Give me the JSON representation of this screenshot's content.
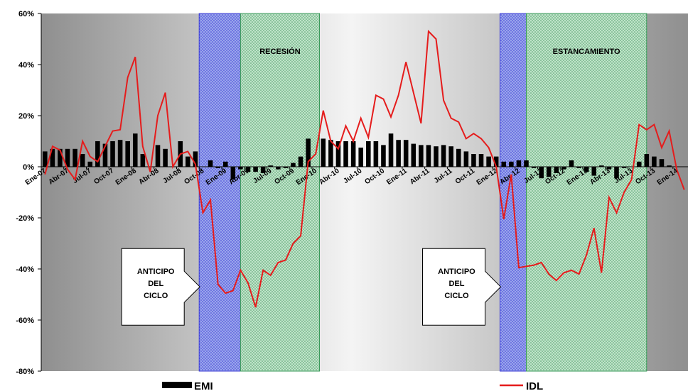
{
  "chart_data": {
    "type": "bar+line",
    "ylim": [
      -80,
      60
    ],
    "yticks": [
      -80,
      -60,
      -40,
      -20,
      0,
      20,
      40,
      60
    ],
    "ytick_labels": [
      "-80%",
      "-60%",
      "-40%",
      "-20%",
      "0%",
      "20%",
      "40%",
      "60%"
    ],
    "x_start": "Ene-07",
    "xtick_labels": [
      "Ene-07",
      "Abr-07",
      "Jul-07",
      "Oct-07",
      "Ene-08",
      "Abr-08",
      "Jul-08",
      "Oct-08",
      "Ene-09",
      "Abr-09",
      "Jul-09",
      "Oct-09",
      "Ene-10",
      "Abr-10",
      "Jul-10",
      "Oct-10",
      "Ene-11",
      "Abr-11",
      "Jul-11",
      "Oct-11",
      "Ene-12",
      "Abr-12",
      "Jul-12",
      "Oct-12",
      "Ene-13",
      "Abr-13",
      "Jul-13",
      "Oct-13",
      "Ene-14"
    ],
    "grid": false,
    "legend_position": "bottom",
    "series": [
      {
        "name": "EMI",
        "type": "bar",
        "color": "#000000",
        "values": [
          6,
          7,
          7,
          7,
          7,
          5,
          2,
          10,
          9,
          10,
          10.5,
          10,
          13,
          5,
          0,
          8.5,
          7,
          0,
          10,
          4,
          6,
          0,
          2.5,
          -0.5,
          2,
          -5,
          -1,
          -2,
          -2,
          -2.5,
          0.5,
          -1,
          -0.5,
          1.5,
          4,
          11,
          0,
          11,
          10.5,
          10,
          10,
          10,
          7.5,
          10,
          10,
          8.5,
          13,
          10.5,
          10.5,
          9,
          8.5,
          8.5,
          8,
          8.5,
          8,
          7,
          6,
          5,
          5,
          4,
          4,
          2,
          2,
          2.5,
          2.5,
          -0.5,
          -4.5,
          -4,
          -2.5,
          -1,
          2.5,
          -0.5,
          -2,
          -3.5,
          0.5,
          -1,
          -4.5,
          -0.5,
          0,
          2,
          5,
          4,
          3,
          0.5,
          0,
          0,
          0,
          -1.5,
          -4,
          -6,
          -3
        ]
      },
      {
        "name": "IDL",
        "type": "line",
        "color": "#e51c1c",
        "values": [
          -3,
          8,
          6.5,
          -1,
          -5,
          10,
          4,
          2,
          8,
          14,
          14.5,
          35,
          43,
          8,
          -2,
          20,
          29,
          0,
          5,
          6,
          1,
          -18,
          -13,
          -46,
          -49.5,
          -48.5,
          -40.5,
          -45.5,
          -55,
          -40.5,
          -42.5,
          -37.5,
          -36.5,
          -30,
          -27,
          2,
          5,
          22,
          10,
          7,
          16,
          10,
          19,
          11.5,
          28,
          26.5,
          19.5,
          28,
          41,
          29,
          17,
          53,
          50,
          26,
          19,
          17.5,
          11,
          13,
          11,
          7.5,
          0,
          -20.5,
          -3,
          -39.5,
          -39,
          -38.5,
          -37.5,
          -42,
          -44.5,
          -41.5,
          -40.5,
          -42,
          -34.5,
          -24,
          -41.5,
          -12,
          -18,
          -10,
          -5,
          16.5,
          14.5,
          16.5,
          7.5,
          14,
          -1,
          -9
        ]
      }
    ],
    "bands": [
      {
        "type": "anticipo",
        "color": "#3b3bd6",
        "from": 21,
        "to": 26.5
      },
      {
        "type": "recesion",
        "color": "#3a9a5a",
        "label": "RECESIÓN",
        "from": 26.5,
        "to": 37
      },
      {
        "type": "anticipo",
        "color": "#3b3bd6",
        "from": 61,
        "to": 64.5
      },
      {
        "type": "estancamiento",
        "color": "#3a9a5a",
        "label": "ESTANCAMIENTO",
        "from": 64.5,
        "to": 80.5
      }
    ],
    "annotations": [
      {
        "lines": [
          "ANTICIPO",
          "DEL",
          "CICLO"
        ],
        "target_month": 21,
        "target_value": -47
      },
      {
        "lines": [
          "ANTICIPO",
          "DEL",
          "CICLO"
        ],
        "target_month": 61,
        "target_value": -47
      }
    ]
  },
  "legend": {
    "emi_label": "EMI",
    "idl_label": "IDL"
  }
}
